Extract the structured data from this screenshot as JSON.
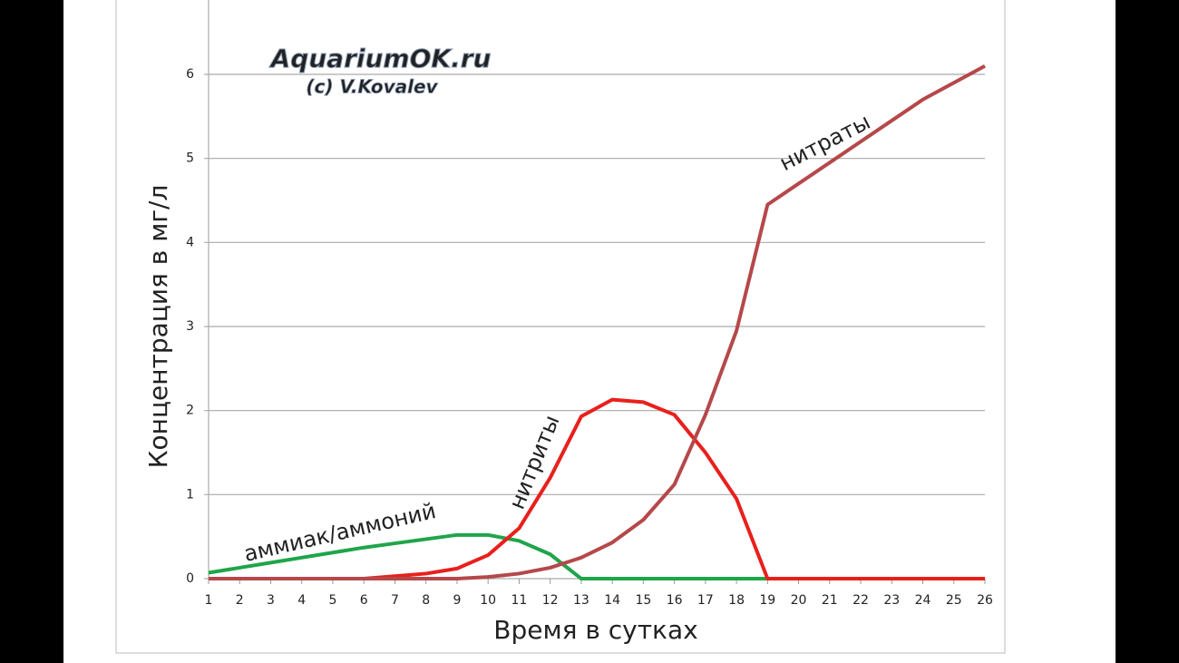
{
  "chart_data": {
    "type": "line",
    "xlabel": "Время в сутках",
    "ylabel": "Концентрация в мг/л",
    "annotations": [
      "AquariumOK.ru",
      "(c) V.Kovalev"
    ],
    "x": [
      1,
      2,
      3,
      4,
      5,
      6,
      7,
      8,
      9,
      10,
      11,
      12,
      13,
      14,
      15,
      16,
      17,
      18,
      19,
      20,
      21,
      22,
      23,
      24,
      25,
      26
    ],
    "xlim": [
      1,
      26
    ],
    "xticks": [
      1,
      2,
      3,
      4,
      5,
      6,
      7,
      8,
      9,
      10,
      11,
      12,
      13,
      14,
      15,
      16,
      17,
      18,
      19,
      20,
      21,
      22,
      23,
      24,
      25,
      26
    ],
    "ylim": [
      0,
      6
    ],
    "yticks": [
      0,
      1,
      2,
      3,
      4,
      5,
      6
    ],
    "grid": true,
    "series": [
      {
        "name": "аммиак/аммоний",
        "color": "#1fa54a",
        "values": [
          0.07,
          0.13,
          0.19,
          0.25,
          0.31,
          0.37,
          0.42,
          0.47,
          0.52,
          0.52,
          0.45,
          0.29,
          0,
          0,
          0,
          0,
          0,
          0,
          0,
          0,
          0,
          0,
          0,
          0,
          0,
          0
        ]
      },
      {
        "name": "нитриты",
        "color": "#e8201c",
        "values": [
          0,
          0,
          0,
          0,
          0,
          0,
          0.03,
          0.06,
          0.12,
          0.28,
          0.6,
          1.2,
          1.93,
          2.13,
          2.1,
          1.95,
          1.5,
          0.95,
          0,
          0,
          0,
          0,
          0,
          0,
          0,
          0
        ]
      },
      {
        "name": "нитраты",
        "color": "#b5484a",
        "values": [
          0,
          0,
          0,
          0,
          0,
          0,
          0,
          0,
          0,
          0.02,
          0.06,
          0.13,
          0.25,
          0.43,
          0.7,
          1.12,
          1.95,
          2.95,
          4.45,
          4.7,
          4.95,
          5.2,
          5.45,
          5.7,
          5.9,
          6.1
        ]
      }
    ]
  }
}
